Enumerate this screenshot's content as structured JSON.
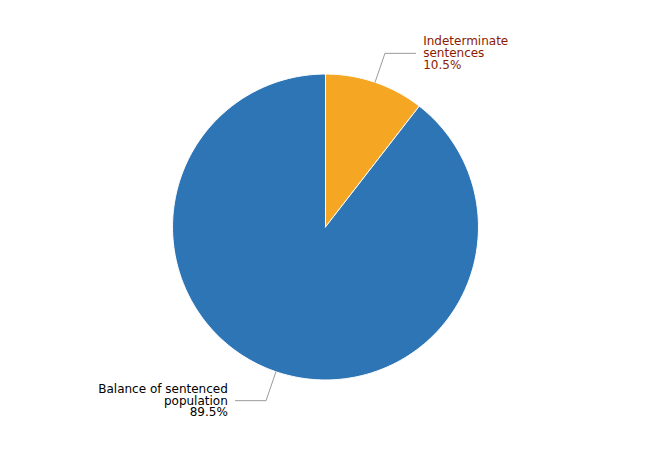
{
  "chart_data": {
    "type": "pie",
    "values": [
      10.5,
      89.5
    ],
    "colors": [
      "#F5A623",
      "#2E75B6"
    ],
    "annotations": [
      {
        "text": "Indeterminate\nsentences\n10.5%",
        "color": "#8B1A00"
      },
      {
        "text": "Balance of sentenced\npopulation\n89.5%",
        "color": "#000000"
      }
    ]
  }
}
